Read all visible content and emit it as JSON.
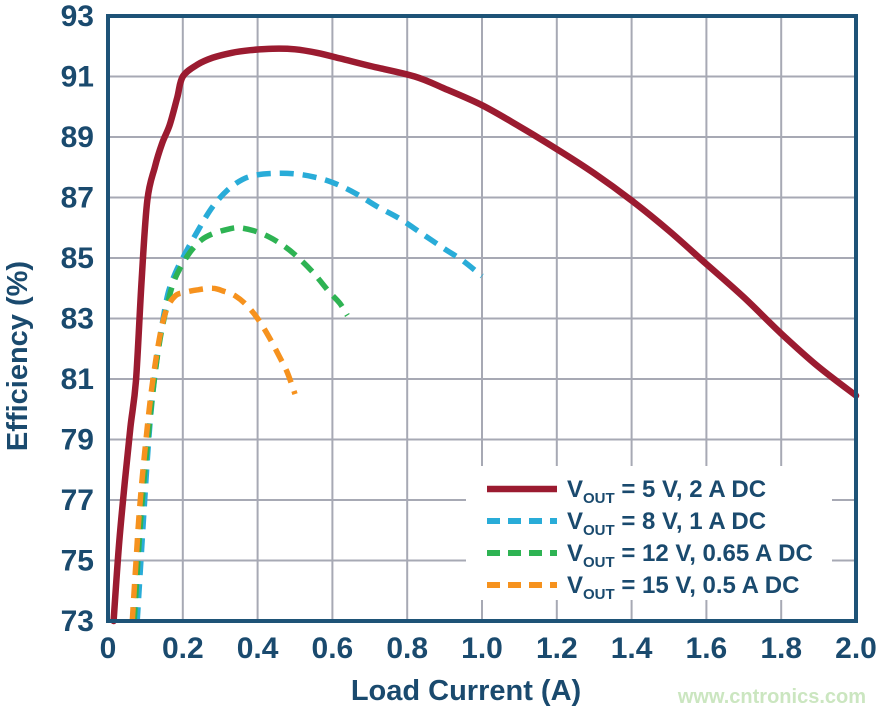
{
  "watermark": "www.cntronics.com",
  "colors": {
    "navy_text": "#1A4A6E",
    "frame": "#1E5377",
    "grid": "#A7A9B4",
    "series_red": "#9B1B30",
    "series_blue": "#29ACD8",
    "series_green": "#2EB353",
    "series_orange": "#F6921E",
    "watermark_green": "#CBE6C0",
    "legend_bg": "#FFFFFF"
  },
  "chart_data": {
    "type": "line",
    "title": "",
    "xlabel": "Load Current (A)",
    "ylabel": "Efficiency (%)",
    "xlim": [
      0,
      2
    ],
    "ylim": [
      73,
      93
    ],
    "grid": true,
    "xticks": {
      "values": [
        0,
        0.2,
        0.4,
        0.6,
        0.8,
        1.0,
        1.2,
        1.4,
        1.6,
        1.8,
        2.0
      ],
      "labels": [
        "0",
        "0.2",
        "0.4",
        "0.6",
        "0.8",
        "1.0",
        "1.2",
        "1.4",
        "1.6",
        "1.8",
        "2.0"
      ]
    },
    "yticks": {
      "values": [
        93,
        91,
        89,
        87,
        85,
        83,
        81,
        79,
        77,
        75,
        73
      ],
      "labels": [
        "93",
        "91",
        "89",
        "87",
        "85",
        "83",
        "81",
        "79",
        "77",
        "75",
        "73"
      ]
    },
    "legend": {
      "position": "lower right",
      "items": [
        {
          "v": "V",
          "sub": "OUT",
          "rest": " = 5 V, 2 A DC",
          "full_label": "VOUT = 5 V, 2 A DC",
          "color": "#9B1B30",
          "dash": "solid"
        },
        {
          "v": "V",
          "sub": "OUT",
          "rest": " = 8 V, 1 A DC",
          "full_label": "VOUT = 8 V, 1 A DC",
          "color": "#29ACD8",
          "dash": "dashed"
        },
        {
          "v": "V",
          "sub": "OUT",
          "rest": " = 12 V, 0.65 A DC",
          "full_label": "VOUT = 12 V, 0.65 A DC",
          "color": "#2EB353",
          "dash": "dashed"
        },
        {
          "v": "V",
          "sub": "OUT",
          "rest": " = 15 V, 0.5 A DC",
          "full_label": "VOUT = 15 V, 0.5 A DC",
          "color": "#F6921E",
          "dash": "dashed"
        }
      ]
    },
    "series": [
      {
        "name": "VOUT = 5 V, 2 A DC",
        "color": "#9B1B30",
        "line": "solid",
        "points": [
          [
            0.015,
            73
          ],
          [
            0.03,
            75.6
          ],
          [
            0.045,
            77.6
          ],
          [
            0.06,
            79.4
          ],
          [
            0.075,
            81.0
          ],
          [
            0.09,
            84.3
          ],
          [
            0.105,
            86.9
          ],
          [
            0.125,
            88.0
          ],
          [
            0.145,
            88.8
          ],
          [
            0.165,
            89.4
          ],
          [
            0.185,
            90.3
          ],
          [
            0.2,
            91.0
          ],
          [
            0.24,
            91.4
          ],
          [
            0.28,
            91.62
          ],
          [
            0.33,
            91.78
          ],
          [
            0.38,
            91.87
          ],
          [
            0.44,
            91.92
          ],
          [
            0.5,
            91.9
          ],
          [
            0.56,
            91.78
          ],
          [
            0.62,
            91.6
          ],
          [
            0.7,
            91.35
          ],
          [
            0.82,
            91.0
          ],
          [
            0.9,
            90.6
          ],
          [
            1.0,
            90.05
          ],
          [
            1.1,
            89.35
          ],
          [
            1.2,
            88.6
          ],
          [
            1.3,
            87.8
          ],
          [
            1.4,
            86.9
          ],
          [
            1.5,
            85.9
          ],
          [
            1.6,
            84.8
          ],
          [
            1.7,
            83.7
          ],
          [
            1.8,
            82.5
          ],
          [
            1.9,
            81.4
          ],
          [
            2.0,
            80.45
          ]
        ]
      },
      {
        "name": "VOUT = 8 V, 1 A DC",
        "color": "#29ACD8",
        "line": "dashed",
        "points": [
          [
            0.078,
            73
          ],
          [
            0.088,
            75
          ],
          [
            0.098,
            77
          ],
          [
            0.112,
            79.5
          ],
          [
            0.127,
            81.3
          ],
          [
            0.142,
            82.6
          ],
          [
            0.16,
            83.8
          ],
          [
            0.18,
            84.5
          ],
          [
            0.2,
            85.0
          ],
          [
            0.24,
            85.9
          ],
          [
            0.28,
            86.7
          ],
          [
            0.32,
            87.25
          ],
          [
            0.36,
            87.6
          ],
          [
            0.4,
            87.75
          ],
          [
            0.45,
            87.8
          ],
          [
            0.5,
            87.78
          ],
          [
            0.55,
            87.68
          ],
          [
            0.6,
            87.5
          ],
          [
            0.66,
            87.15
          ],
          [
            0.72,
            86.7
          ],
          [
            0.78,
            86.3
          ],
          [
            0.84,
            85.8
          ],
          [
            0.9,
            85.3
          ],
          [
            0.95,
            84.9
          ],
          [
            1.0,
            84.4
          ]
        ]
      },
      {
        "name": "VOUT = 12 V, 0.65 A DC",
        "color": "#2EB353",
        "line": "dashed",
        "points": [
          [
            0.07,
            73
          ],
          [
            0.08,
            75
          ],
          [
            0.09,
            76.8
          ],
          [
            0.105,
            78.8
          ],
          [
            0.12,
            80.6
          ],
          [
            0.135,
            82.0
          ],
          [
            0.15,
            83.0
          ],
          [
            0.17,
            84.0
          ],
          [
            0.19,
            84.6
          ],
          [
            0.22,
            85.2
          ],
          [
            0.25,
            85.6
          ],
          [
            0.28,
            85.8
          ],
          [
            0.32,
            85.95
          ],
          [
            0.35,
            86.0
          ],
          [
            0.39,
            85.9
          ],
          [
            0.43,
            85.7
          ],
          [
            0.47,
            85.4
          ],
          [
            0.51,
            85.0
          ],
          [
            0.55,
            84.5
          ],
          [
            0.59,
            83.9
          ],
          [
            0.62,
            83.5
          ],
          [
            0.64,
            83.1
          ]
        ]
      },
      {
        "name": "VOUT = 15 V, 0.5 A DC",
        "color": "#F6921E",
        "line": "dashed",
        "points": [
          [
            0.065,
            73
          ],
          [
            0.075,
            75
          ],
          [
            0.085,
            76.8
          ],
          [
            0.1,
            78.8
          ],
          [
            0.115,
            80.5
          ],
          [
            0.13,
            81.8
          ],
          [
            0.145,
            82.8
          ],
          [
            0.16,
            83.4
          ],
          [
            0.18,
            83.75
          ],
          [
            0.2,
            83.85
          ],
          [
            0.24,
            83.95
          ],
          [
            0.28,
            84.0
          ],
          [
            0.31,
            83.9
          ],
          [
            0.34,
            83.75
          ],
          [
            0.37,
            83.45
          ],
          [
            0.4,
            83.0
          ],
          [
            0.43,
            82.4
          ],
          [
            0.46,
            81.7
          ],
          [
            0.48,
            81.2
          ],
          [
            0.5,
            80.5
          ]
        ]
      }
    ]
  }
}
